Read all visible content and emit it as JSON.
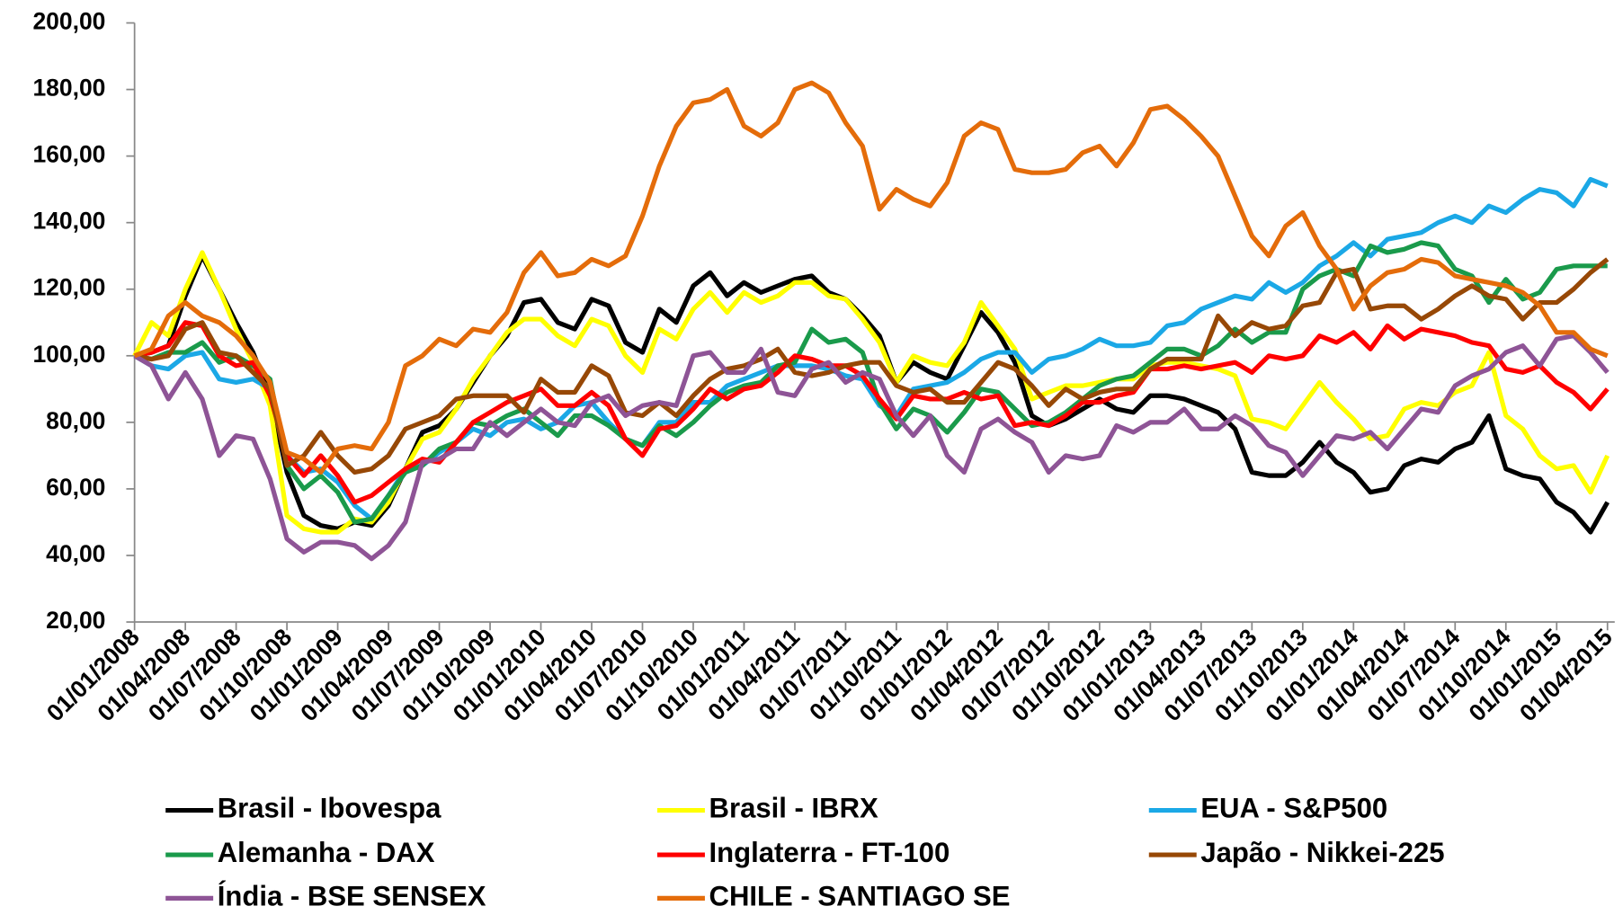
{
  "chart_data": {
    "type": "line",
    "categories": [
      "01/01/2008",
      null,
      null,
      "01/04/2008",
      null,
      null,
      "01/07/2008",
      null,
      null,
      "01/10/2008",
      null,
      null,
      "01/01/2009",
      null,
      null,
      "01/04/2009",
      null,
      null,
      "01/07/2009",
      null,
      null,
      "01/10/2009",
      null,
      null,
      "01/01/2010",
      null,
      null,
      "01/04/2010",
      null,
      null,
      "01/07/2010",
      null,
      null,
      "01/10/2010",
      null,
      null,
      "01/01/2011",
      null,
      null,
      "01/04/2011",
      null,
      null,
      "01/07/2011",
      null,
      null,
      "01/10/2011",
      null,
      null,
      "01/01/2012",
      null,
      null,
      "01/04/2012",
      null,
      null,
      "01/07/2012",
      null,
      null,
      "01/10/2012",
      null,
      null,
      "01/01/2013",
      null,
      null,
      "01/04/2013",
      null,
      null,
      "01/07/2013",
      null,
      null,
      "01/10/2013",
      null,
      null,
      "01/01/2014",
      null,
      null,
      "01/04/2014",
      null,
      null,
      "01/07/2014",
      null,
      null,
      "01/10/2014",
      null,
      null,
      "01/01/2015",
      null,
      null,
      "01/04/2015"
    ],
    "series": [
      {
        "name": "Brasil - Ibovespa",
        "color": "#000000",
        "values": [
          100,
          101,
          103,
          118,
          130,
          120,
          110,
          101,
          88,
          65,
          52,
          49,
          48,
          50,
          49,
          55,
          66,
          77,
          79,
          84,
          92,
          100,
          106,
          116,
          117,
          110,
          108,
          117,
          115,
          104,
          101,
          114,
          110,
          121,
          125,
          118,
          122,
          119,
          121,
          123,
          124,
          119,
          117,
          112,
          106,
          92,
          98,
          95,
          93,
          103,
          113,
          107,
          98,
          82,
          79,
          81,
          84,
          87,
          84,
          83,
          88,
          88,
          87,
          85,
          83,
          78,
          65,
          64,
          64,
          68,
          74,
          68,
          65,
          59,
          60,
          67,
          69,
          68,
          72,
          74,
          82,
          66,
          64,
          63,
          56,
          53,
          47,
          56
        ]
      },
      {
        "name": "Brasil - IBRX",
        "color": "#ffff00",
        "values": [
          100,
          110,
          106,
          120,
          131,
          120,
          108,
          98,
          85,
          52,
          48,
          47,
          47,
          51,
          50,
          56,
          66,
          75,
          77,
          84,
          93,
          100,
          107,
          111,
          111,
          106,
          103,
          111,
          109,
          100,
          95,
          108,
          105,
          114,
          119,
          113,
          119,
          116,
          118,
          122,
          122,
          118,
          117,
          111,
          104,
          92,
          100,
          98,
          97,
          104,
          116,
          109,
          102,
          87,
          89,
          91,
          91,
          92,
          93,
          93,
          97,
          98,
          98,
          97,
          96,
          94,
          81,
          80,
          78,
          85,
          92,
          86,
          81,
          75,
          76,
          84,
          86,
          85,
          89,
          91,
          101,
          82,
          78,
          70,
          66,
          67,
          59,
          70
        ]
      },
      {
        "name": "EUA - S&P500",
        "color": "#1ba8e6",
        "values": [
          100,
          97,
          96,
          100,
          101,
          93,
          92,
          93,
          90,
          70,
          65,
          66,
          62,
          55,
          51,
          58,
          66,
          67,
          71,
          74,
          78,
          76,
          80,
          81,
          78,
          80,
          85,
          86,
          80,
          75,
          73,
          80,
          80,
          86,
          86,
          91,
          93,
          95,
          97,
          97,
          97,
          96,
          94,
          93,
          85,
          82,
          90,
          91,
          92,
          95,
          99,
          101,
          101,
          95,
          99,
          100,
          102,
          105,
          103,
          103,
          104,
          109,
          110,
          114,
          116,
          118,
          117,
          122,
          119,
          122,
          127,
          130,
          134,
          130,
          135,
          136,
          137,
          140,
          142,
          140,
          145,
          143,
          147,
          150,
          149,
          145,
          153,
          151
        ]
      },
      {
        "name": "Alemanha - DAX",
        "color": "#1a9a4b",
        "values": [
          100,
          99,
          101,
          101,
          104,
          98,
          100,
          97,
          93,
          67,
          60,
          64,
          59,
          50,
          51,
          58,
          65,
          67,
          72,
          74,
          80,
          79,
          82,
          84,
          80,
          76,
          82,
          82,
          79,
          75,
          73,
          79,
          76,
          80,
          85,
          89,
          91,
          92,
          97,
          98,
          108,
          104,
          105,
          101,
          86,
          78,
          84,
          82,
          77,
          83,
          90,
          89,
          84,
          79,
          80,
          83,
          87,
          91,
          93,
          94,
          98,
          102,
          102,
          100,
          103,
          108,
          104,
          107,
          107,
          120,
          124,
          126,
          124,
          133,
          131,
          132,
          134,
          133,
          126,
          124,
          116,
          123,
          117,
          119,
          126,
          127,
          127,
          127
        ]
      },
      {
        "name": "Inglaterra - FT-100",
        "color": "#ff0000",
        "values": [
          100,
          101,
          103,
          110,
          109,
          100,
          97,
          98,
          88,
          70,
          64,
          70,
          64,
          56,
          58,
          62,
          66,
          69,
          68,
          74,
          80,
          83,
          86,
          88,
          90,
          85,
          85,
          89,
          85,
          75,
          70,
          78,
          79,
          84,
          90,
          87,
          90,
          91,
          95,
          100,
          99,
          97,
          97,
          94,
          87,
          81,
          88,
          87,
          87,
          89,
          87,
          88,
          79,
          80,
          79,
          82,
          86,
          86,
          88,
          89,
          96,
          96,
          97,
          96,
          97,
          98,
          95,
          100,
          99,
          100,
          106,
          104,
          107,
          102,
          109,
          105,
          108,
          107,
          106,
          104,
          103,
          96,
          95,
          97,
          92,
          89,
          84,
          90
        ]
      },
      {
        "name": "Japão - Nikkei-225",
        "color": "#974806",
        "values": [
          100,
          99,
          100,
          108,
          110,
          101,
          100,
          95,
          90,
          67,
          70,
          77,
          70,
          65,
          66,
          70,
          78,
          80,
          82,
          87,
          88,
          88,
          88,
          83,
          93,
          89,
          89,
          97,
          94,
          83,
          82,
          86,
          82,
          88,
          93,
          96,
          97,
          99,
          102,
          95,
          94,
          95,
          97,
          98,
          98,
          91,
          89,
          90,
          86,
          86,
          92,
          98,
          96,
          91,
          85,
          90,
          87,
          89,
          90,
          90,
          96,
          99,
          99,
          99,
          112,
          106,
          110,
          108,
          109,
          115,
          116,
          125,
          126,
          114,
          115,
          115,
          111,
          114,
          118,
          121,
          118,
          117,
          111,
          116,
          116,
          120,
          125,
          129
        ]
      },
      {
        "name": "Índia - BSE SENSEX",
        "color": "#8e5496",
        "values": [
          100,
          97,
          87,
          95,
          87,
          70,
          76,
          75,
          63,
          45,
          41,
          44,
          44,
          43,
          39,
          43,
          50,
          68,
          69,
          72,
          72,
          80,
          76,
          80,
          84,
          80,
          79,
          86,
          88,
          82,
          85,
          86,
          85,
          100,
          101,
          95,
          95,
          102,
          89,
          88,
          96,
          98,
          92,
          95,
          93,
          82,
          76,
          82,
          70,
          65,
          78,
          81,
          77,
          74,
          65,
          70,
          69,
          70,
          79,
          77,
          80,
          80,
          84,
          78,
          78,
          82,
          79,
          73,
          71,
          64,
          70,
          76,
          75,
          77,
          72,
          78,
          84,
          83,
          91,
          94,
          96,
          101,
          103,
          97,
          105,
          106,
          101,
          95
        ]
      },
      {
        "name": "CHILE - SANTIAGO SE",
        "color": "#e46c0a",
        "values": [
          100,
          102,
          112,
          116,
          112,
          110,
          106,
          100,
          92,
          71,
          69,
          65,
          72,
          73,
          72,
          80,
          97,
          100,
          105,
          103,
          108,
          107,
          113,
          125,
          131,
          124,
          125,
          129,
          127,
          130,
          142,
          157,
          169,
          176,
          177,
          180,
          169,
          166,
          170,
          180,
          182,
          179,
          170,
          163,
          144,
          150,
          147,
          145,
          152,
          166,
          170,
          168,
          156,
          155,
          155,
          156,
          161,
          163,
          157,
          164,
          174,
          175,
          171,
          166,
          160,
          148,
          136,
          130,
          139,
          143,
          133,
          126,
          114,
          121,
          125,
          126,
          129,
          128,
          124,
          123,
          122,
          121,
          119,
          115,
          107,
          107,
          102,
          100
        ]
      }
    ],
    "ylim": [
      20,
      200
    ],
    "yticks": [
      {
        "value": 20,
        "label": "20,00"
      },
      {
        "value": 40,
        "label": "40,00"
      },
      {
        "value": 60,
        "label": "60,00"
      },
      {
        "value": 80,
        "label": "80,00"
      },
      {
        "value": 100,
        "label": "100,00"
      },
      {
        "value": 120,
        "label": "120,00"
      },
      {
        "value": 140,
        "label": "140,00"
      },
      {
        "value": 160,
        "label": "160,00"
      },
      {
        "value": 180,
        "label": "180,00"
      },
      {
        "value": 200,
        "label": "200,00"
      }
    ],
    "grid": false,
    "legend": "bottom"
  }
}
